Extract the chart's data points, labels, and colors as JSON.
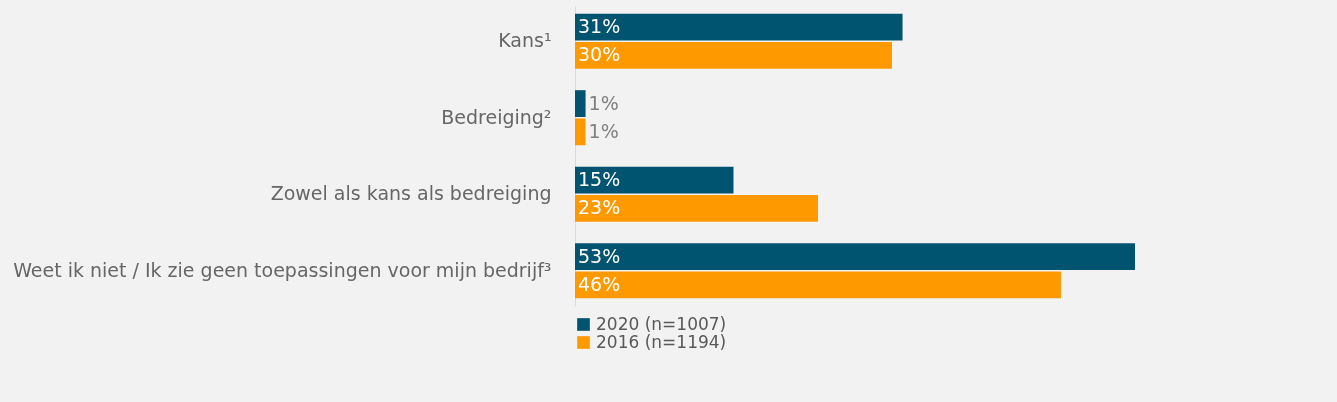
{
  "chart_data": {
    "type": "bar",
    "orientation": "horizontal",
    "categories": [
      "Kans¹",
      "Bedreiging²",
      "Zowel als kans als bedreiging",
      "Weet ik niet / Ik zie geen toepassingen voor mijn bedrijf³"
    ],
    "series": [
      {
        "name": "2020 (n=1007)",
        "color": "#00546f",
        "values": [
          31,
          1,
          15,
          53
        ],
        "value_labels": [
          "31%",
          "1%",
          "15%",
          "53%"
        ]
      },
      {
        "name": "2016 (n=1194)",
        "color": "#ff9900",
        "values": [
          30,
          1,
          23,
          46
        ],
        "value_labels": [
          "30%",
          "1%",
          "23%",
          "46%"
        ]
      }
    ],
    "legend": "bottom"
  }
}
